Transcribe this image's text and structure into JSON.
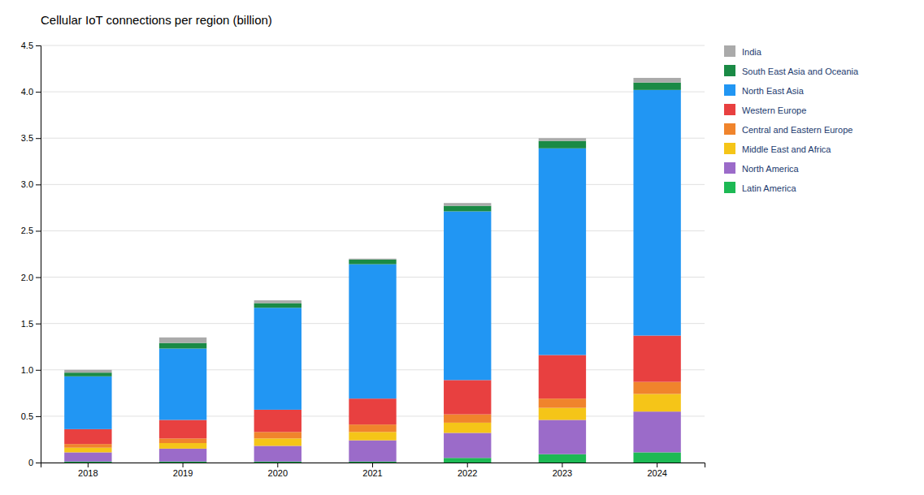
{
  "chart_data": {
    "type": "bar",
    "title": "Cellular IoT connections per region (billion)",
    "categories": [
      "2018",
      "2019",
      "2020",
      "2021",
      "2022",
      "2023",
      "2024"
    ],
    "series": [
      {
        "name": "Latin America",
        "color": "#1db954",
        "values": [
          0.01,
          0.01,
          0.01,
          0.01,
          0.05,
          0.09,
          0.11
        ]
      },
      {
        "name": "North America",
        "color": "#9b6bc9",
        "values": [
          0.1,
          0.14,
          0.17,
          0.23,
          0.27,
          0.37,
          0.44
        ]
      },
      {
        "name": "Middle East and Africa",
        "color": "#f5c518",
        "values": [
          0.05,
          0.06,
          0.08,
          0.09,
          0.11,
          0.13,
          0.19
        ]
      },
      {
        "name": "Central and Eastern Europe",
        "color": "#f0842c",
        "values": [
          0.04,
          0.05,
          0.07,
          0.08,
          0.09,
          0.1,
          0.13
        ]
      },
      {
        "name": "Western Europe",
        "color": "#e84040",
        "values": [
          0.16,
          0.2,
          0.24,
          0.28,
          0.37,
          0.47,
          0.5
        ]
      },
      {
        "name": "North East Asia",
        "color": "#2196f3",
        "values": [
          0.57,
          0.77,
          1.1,
          1.45,
          1.82,
          2.23,
          2.65
        ]
      },
      {
        "name": "South East Asia and Oceania",
        "color": "#1a8a45",
        "values": [
          0.04,
          0.06,
          0.05,
          0.05,
          0.06,
          0.08,
          0.08
        ]
      },
      {
        "name": "India",
        "color": "#aaaaaa",
        "values": [
          0.03,
          0.06,
          0.03,
          0.01,
          0.03,
          0.03,
          0.05
        ]
      }
    ],
    "stacked": true,
    "ylim": [
      0,
      4.5
    ],
    "yticks": [
      0,
      0.5,
      {
        "value": 1.0,
        "label": "1.0"
      },
      1.5,
      {
        "value": 2.0,
        "label": "2.0"
      },
      2.5,
      {
        "value": 3.0,
        "label": "3.0"
      },
      3.5,
      {
        "value": 4.0,
        "label": "4.0"
      },
      4.5
    ],
    "grid": true,
    "legend": "right"
  }
}
